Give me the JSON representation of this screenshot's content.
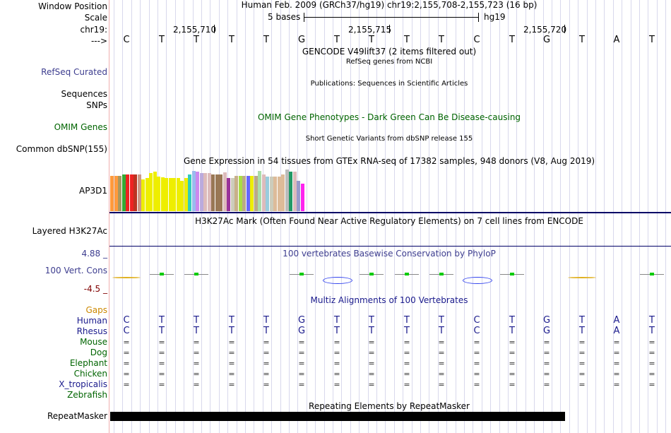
{
  "header": {
    "window_position_label": "Window Position",
    "scale_label": "Scale",
    "chrom_label": "chr19:",
    "strand_label": "--->",
    "assembly_title": "Human Feb. 2009 (GRCh37/hg19)   chr19:2,155,708-2,155,723 (16 bp)",
    "scale_text": "5 bases",
    "scale_db": "hg19",
    "coords": [
      "2,155,710",
      "2,155,715",
      "2,155,720"
    ]
  },
  "sequence": [
    "C",
    "T",
    "T",
    "T",
    "T",
    "G",
    "T",
    "T",
    "T",
    "T",
    "C",
    "T",
    "G",
    "T",
    "A",
    "T"
  ],
  "labels": {
    "refseq": "RefSeq Curated",
    "sequences": "Sequences",
    "snps": "SNPs",
    "omim": "OMIM Genes",
    "dbsnp": "Common dbSNP(155)",
    "gene": "AP3D1",
    "h3k27ac": "Layered H3K27Ac",
    "phylo_max": "4.88 _",
    "cons": "100 Vert. Cons",
    "phylo_min": "-4.5 _",
    "gaps": "Gaps",
    "human": "Human",
    "rhesus": "Rhesus",
    "mouse": "Mouse",
    "dog": "Dog",
    "elephant": "Elephant",
    "chicken": "Chicken",
    "xtrop": "X_tropicalis",
    "zebrafish": "Zebrafish",
    "repeatmasker": "RepeatMasker"
  },
  "tracks": {
    "gencode": "GENCODE V49lift37 (2 items filtered out)",
    "refseq_desc": "RefSeq genes from NCBI",
    "publications": "Publications: Sequences in Scientific Articles",
    "omim_title": "OMIM Gene Phenotypes - Dark Green Can Be Disease-causing",
    "dbsnp_title": "Short Genetic Variants from dbSNP release 155",
    "gtex_title": "Gene Expression in 54 tissues from GTEx RNA-seq of 17382 samples, 948 donors (V8, Aug 2019)",
    "h3k27ac_title": "H3K27Ac Mark (Often Found Near Active Regulatory Elements) on 7 cell lines from ENCODE",
    "phylop_title": "100 vertebrates Basewise Conservation by PhyloP",
    "multiz_title": "Multiz Alignments of 100 Vertebrates",
    "repeat_title": "Repeating Elements by RepeatMasker"
  },
  "alignment": {
    "rhesus": [
      "C",
      "T",
      "T",
      "T",
      "T",
      "G",
      "T",
      "T",
      "T",
      "T",
      "C",
      "T",
      "G",
      "T",
      "A",
      "T"
    ],
    "eq_symbol": "="
  },
  "gtex": {
    "colors": [
      "#ff9a3c",
      "#ff9a3c",
      "#a89860",
      "#33aa33",
      "#ee2222",
      "#ee2222",
      "#bb3322",
      "#cc9988",
      "#eeee00",
      "#eeee00",
      "#eeee00",
      "#eeee00",
      "#eeee00",
      "#eeee00",
      "#eeee00",
      "#eeee00",
      "#eeee00",
      "#eeee00",
      "#eeee00",
      "#eeee00",
      "#33ccbb",
      "#99bbee",
      "#cc88ee",
      "#bbaadd",
      "#ddbbbb",
      "#ddbbbb",
      "#997755",
      "#997755",
      "#997755",
      "#ddbbbb",
      "#993399",
      "#ccccbb",
      "#c8b08a",
      "#aadd44",
      "#bbaa88",
      "#6666ff",
      "#eeee00",
      "#bbaa88",
      "#aaddaa",
      "#ddbbbb",
      "#99ccdd",
      "#ccccbb",
      "#ddbb99",
      "#ddbb99",
      "#ddbb99",
      "#bbbbbb",
      "#229966",
      "#ddbbbb",
      "#9999cc",
      "#ff22ee"
    ],
    "values": [
      0.79,
      0.79,
      0.79,
      0.83,
      0.83,
      0.83,
      0.83,
      0.83,
      0.72,
      0.75,
      0.86,
      0.89,
      0.78,
      0.76,
      0.74,
      0.74,
      0.74,
      0.74,
      0.69,
      0.74,
      0.82,
      0.91,
      0.89,
      0.85,
      0.85,
      0.85,
      0.83,
      0.83,
      0.83,
      0.87,
      0.75,
      0.74,
      0.79,
      0.79,
      0.79,
      0.79,
      0.79,
      0.79,
      0.91,
      0.83,
      0.78,
      0.78,
      0.78,
      0.78,
      0.83,
      0.94,
      0.89,
      0.89,
      0.69,
      0.62
    ]
  },
  "phylop": [
    -0.2,
    0.3,
    0.3,
    0,
    0,
    0.4,
    -1.1,
    0.3,
    0.3,
    0.4,
    -0.8,
    0.1,
    0,
    -0.2,
    0,
    0.2
  ],
  "colors": {
    "label_blue": "#3d3d8f",
    "label_green": "#006400",
    "label_orange": "#cc8800",
    "label_maroon": "#800000",
    "omim_green": "#006400",
    "track_blue": "#1a1a8c",
    "grid": "#d8d8ec",
    "separator": "#000066"
  }
}
